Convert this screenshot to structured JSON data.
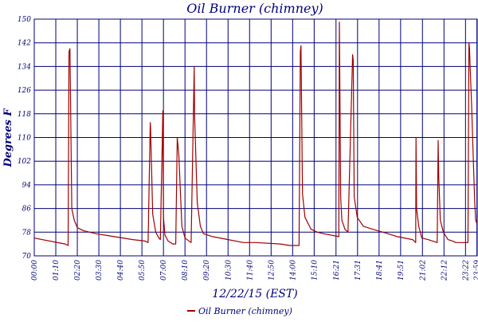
{
  "chart_data": {
    "type": "line",
    "title": "Oil Burner (chimney)",
    "xlabel": "12/22/15 (EST)",
    "ylabel": "Degrees F",
    "ylim": [
      70,
      150
    ],
    "yticks": [
      70,
      78,
      86,
      94,
      102,
      110,
      118,
      126,
      134,
      142,
      150
    ],
    "xlim": [
      0,
      1440
    ],
    "xtick_labels": [
      "00:00",
      "01:10",
      "02:20",
      "03:30",
      "04:40",
      "05:50",
      "07:00",
      "08:10",
      "09:20",
      "10:30",
      "11:40",
      "12:50",
      "14:00",
      "15:10",
      "16:21",
      "17:31",
      "18:41",
      "19:51",
      "21:02",
      "22:12",
      "23:22",
      "23:59"
    ],
    "xtick_minutes": [
      0,
      70,
      140,
      210,
      280,
      350,
      420,
      490,
      560,
      630,
      700,
      770,
      840,
      910,
      981,
      1051,
      1121,
      1191,
      1262,
      1332,
      1402,
      1439
    ],
    "grid": true,
    "legend_position": "bottom-left",
    "colors": {
      "series": "#a00000",
      "grid": "#00007a",
      "text": "#00007a"
    },
    "series": [
      {
        "name": "Oil Burner (chimney)",
        "x": [
          0,
          100,
          110,
          113,
          116,
          122,
          130,
          140,
          160,
          200,
          260,
          320,
          360,
          370,
          377,
          378,
          385,
          395,
          405,
          410,
          418,
          420,
          425,
          435,
          450,
          460,
          465,
          470,
          480,
          490,
          510,
          520,
          521,
          530,
          540,
          550,
          580,
          630,
          680,
          720,
          800,
          830,
          861,
          865,
          867,
          872,
          880,
          900,
          920,
          940,
          990,
          992,
          996,
          1000,
          1010,
          1020,
          1035,
          1037,
          1040,
          1050,
          1070,
          1100,
          1150,
          1180,
          1230,
          1240,
          1241,
          1243,
          1250,
          1260,
          1280,
          1310,
          1313,
          1315,
          1320,
          1330,
          1345,
          1360,
          1370,
          1380,
          1395,
          1405,
          1410,
          1413,
          1415,
          1422,
          1428,
          1432,
          1435,
          1439
        ],
        "y": [
          76,
          74,
          73.5,
          139,
          140,
          86,
          82,
          79.5,
          78.5,
          77.5,
          76.5,
          75.5,
          75,
          74.5,
          115,
          113,
          84,
          78,
          76,
          75.5,
          119,
          83,
          77,
          75,
          74,
          74,
          110,
          104,
          80,
          76,
          74.5,
          134,
          118,
          88,
          80,
          77.5,
          76.5,
          75.5,
          74.5,
          74.5,
          74,
          73.5,
          73.5,
          139,
          141,
          91,
          83,
          79,
          78,
          77.5,
          76.5,
          149,
          90,
          82,
          79,
          78,
          138,
          136,
          90,
          83,
          80,
          79,
          77.5,
          76.5,
          75.5,
          74.5,
          110,
          86,
          80,
          76,
          75.5,
          74.5,
          109,
          97,
          82,
          78,
          75.5,
          75,
          74.5,
          74.5,
          74.5,
          74.5,
          74.5,
          142,
          140,
          120,
          100,
          88,
          82,
          81
        ]
      }
    ]
  }
}
